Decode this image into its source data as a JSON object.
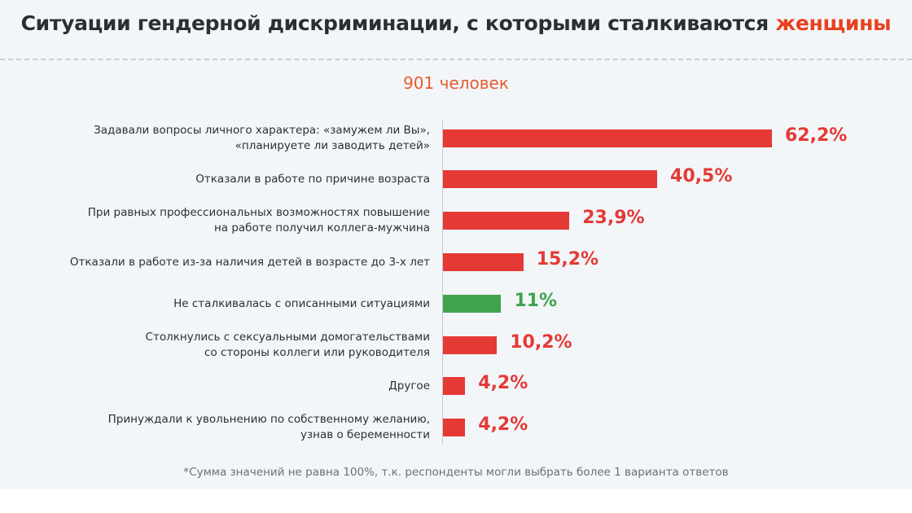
{
  "title": {
    "main": "Ситуации гендерной дискриминации, с которыми сталкиваются",
    "accent": "женщины"
  },
  "subtitle": "901 человек",
  "footnote": "*Сумма значений не равна 100%, т.к. респонденты могли выбрать более 1 варианта ответов",
  "colors": {
    "bar": "#e53935",
    "highlight": "#3fa34d",
    "accent": "#e8411f"
  },
  "chart_data": {
    "type": "bar",
    "orientation": "horizontal",
    "categories": [
      "Задавали вопросы личного характера: «замужем ли Вы»,\n«планируете ли заводить детей»",
      "Отказали в работе по причине возраста",
      "При равных профессиональных возможностях повышение\nна работе получил коллега-мужчина",
      "Отказали в работе из-за наличия детей в возрасте до 3-х лет",
      "Не сталкивалась с описанными ситуациями",
      "Столкнулись с сексуальными домогательствами\nсо стороны коллеги или руководителя",
      "Другое",
      "Принуждали к увольнению по собственному желанию,\nузнав о беременности"
    ],
    "values": [
      62.2,
      40.5,
      23.9,
      15.2,
      11,
      10.2,
      4.2,
      4.2
    ],
    "data_labels": [
      "62,2%",
      "40,5%",
      "23,9%",
      "15,2%",
      "11%",
      "10,2%",
      "4,2%",
      "4,2%"
    ],
    "highlighted": [
      false,
      false,
      false,
      false,
      true,
      false,
      false,
      false
    ],
    "grid": false
  }
}
